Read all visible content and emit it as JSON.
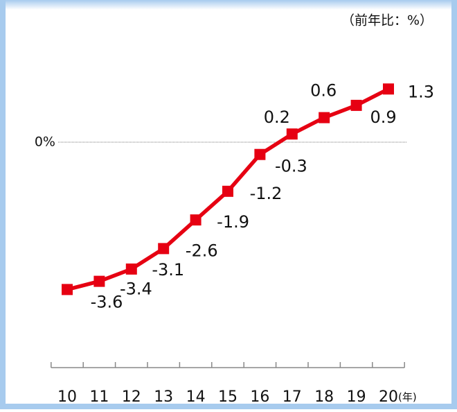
{
  "chart_data": {
    "type": "line",
    "ylabel": "（前年比：%）",
    "xlabel": "(年)",
    "categories": [
      "10",
      "11",
      "12",
      "13",
      "14",
      "15",
      "16",
      "17",
      "18",
      "19",
      "20"
    ],
    "series": [
      {
        "name": null,
        "color": "#e60012",
        "values": [
          -3.6,
          -3.4,
          -3.1,
          -2.6,
          -1.9,
          -1.2,
          -0.3,
          0.2,
          0.6,
          0.9,
          1.3
        ]
      }
    ],
    "ylim": [
      -4,
      2
    ],
    "yticks": [
      {
        "value": 0,
        "label": "0%"
      }
    ],
    "grid": true
  }
}
